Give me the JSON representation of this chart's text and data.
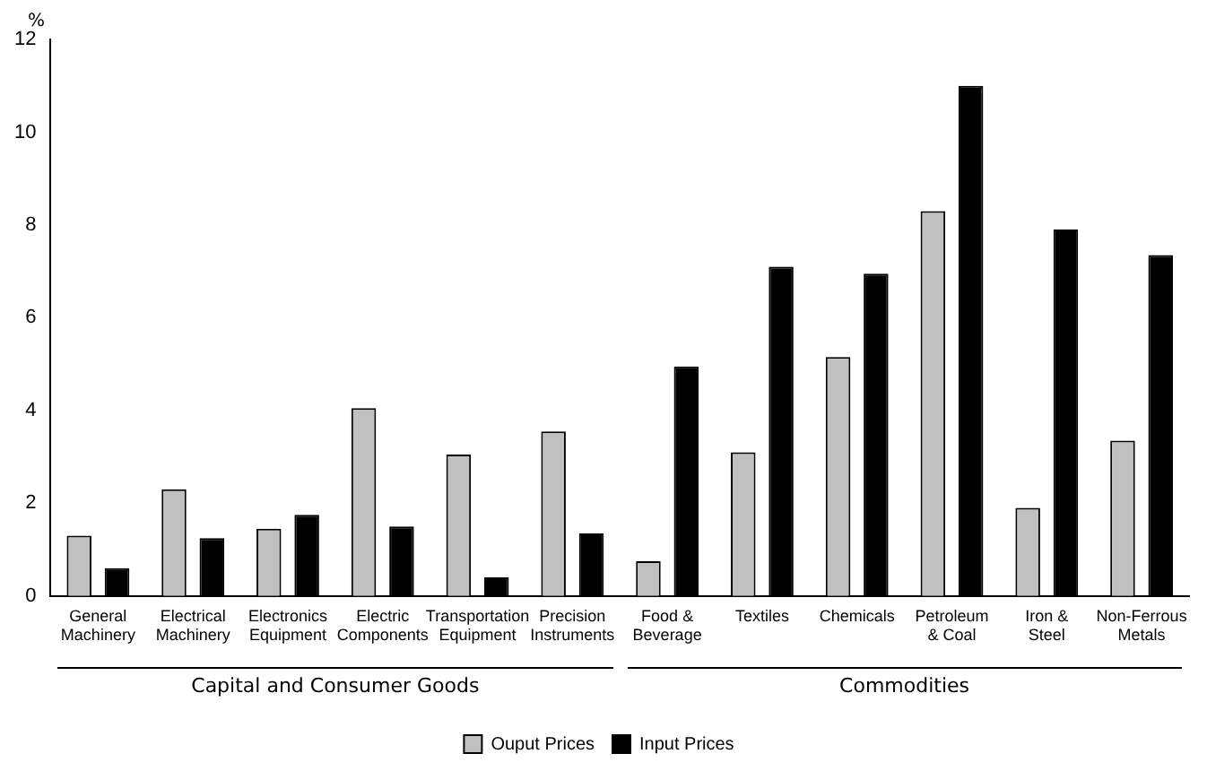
{
  "chart_data": {
    "type": "bar",
    "ylabel": "%",
    "categories": [
      "General Machinery",
      "Electrical Machinery",
      "Electronics Equipment",
      "Electric Components",
      "Transportation Equipment",
      "Precision Instruments",
      "Food & Beverage",
      "Textiles",
      "Chemicals",
      "Petroleum & Coal",
      "Iron & Steel",
      "Non-Ferrous Metals"
    ],
    "series": [
      {
        "name": "Ouput Prices",
        "color": "#c0c0c0",
        "values": [
          1.3,
          2.3,
          1.45,
          4.05,
          3.05,
          3.55,
          0.75,
          3.1,
          5.15,
          8.3,
          1.9,
          3.35
        ]
      },
      {
        "name": "Input Prices",
        "color": "#000000",
        "values": [
          0.6,
          1.25,
          1.75,
          1.5,
          0.4,
          1.35,
          4.95,
          7.1,
          6.95,
          11.0,
          7.9,
          7.35
        ]
      }
    ],
    "ylim": [
      0,
      12
    ],
    "yticks": [
      0,
      2,
      4,
      6,
      8,
      10,
      12
    ],
    "grid": false,
    "legend": "bottom",
    "annotations": [
      "Capital and Consumer Goods",
      "Commodities"
    ]
  }
}
